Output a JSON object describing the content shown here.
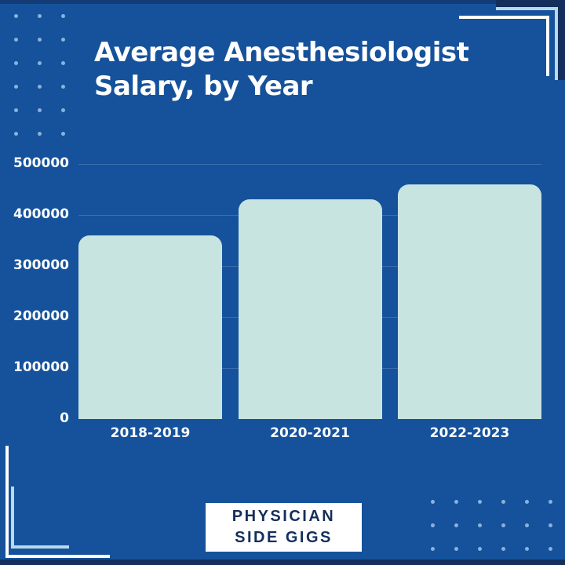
{
  "title": {
    "full": "Average Anesthesiologist Salary, by Year",
    "line1": "Average Anesthesiologist",
    "line2": "Salary, by Year"
  },
  "badge": {
    "line1": "PHYSICIAN",
    "line2": "SIDE GIGS"
  },
  "chart_data": {
    "type": "bar",
    "title": "Average Anesthesiologist Salary, by Year",
    "categories": [
      "2018-2019",
      "2020-2021",
      "2022-2023"
    ],
    "values": [
      360000,
      430000,
      460000
    ],
    "xlabel": "",
    "ylabel": "",
    "ylim": [
      0,
      500000
    ],
    "ytick_labels": [
      "500000",
      "400000",
      "300000",
      "200000",
      "100000",
      "0"
    ],
    "grid": true,
    "legend": false,
    "bar_color": "#C8E4E1",
    "background_color": "#15529B"
  },
  "colors": {
    "background": "#15529B",
    "bar_fill": "#C8E4E1",
    "accent_navy": "#142F5C",
    "text_white": "#FFFFFF",
    "dot_blue": "#A8CBEC",
    "bracket_light_blue": "#B9D8EA",
    "bracket_white": "#FFFFFF"
  }
}
